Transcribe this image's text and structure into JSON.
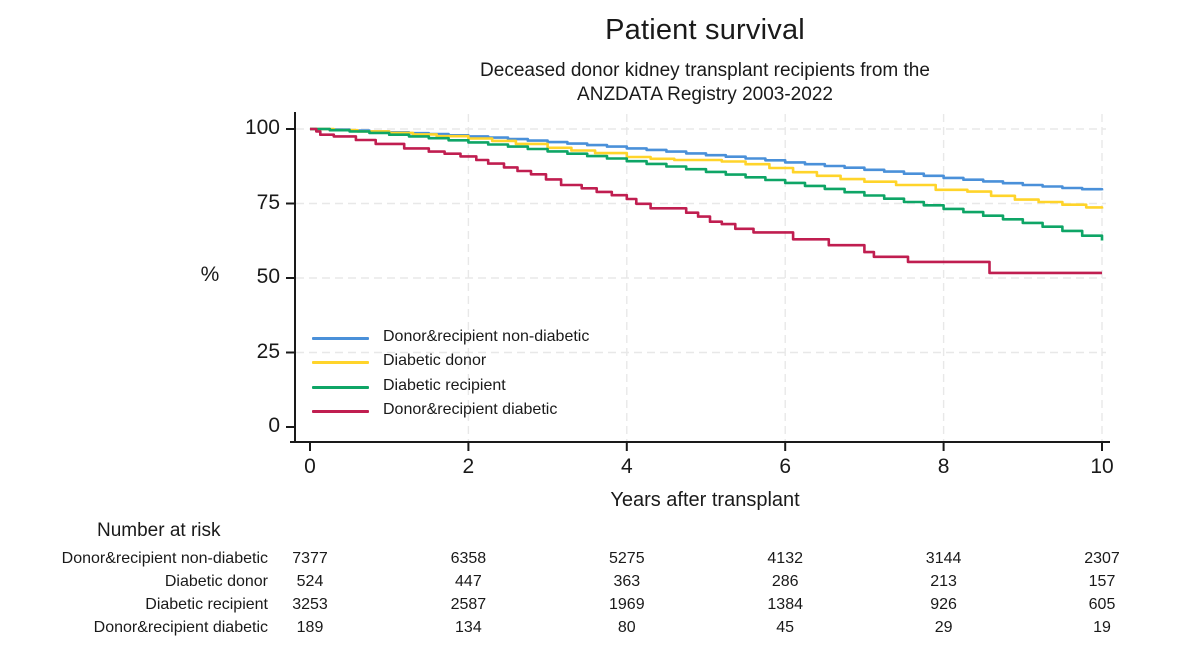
{
  "chart_data": {
    "type": "line",
    "subtype": "kaplan-meier-step",
    "title": "Patient survival",
    "subtitle": [
      "Deceased donor kidney transplant recipients from the",
      "ANZDATA Registry 2003-2022"
    ],
    "xlabel": "Years after transplant",
    "ylabel": "%",
    "xlim": [
      0,
      10
    ],
    "ylim": [
      0,
      100
    ],
    "x_ticks": [
      0,
      2,
      4,
      6,
      8,
      10
    ],
    "y_ticks": [
      0,
      25,
      50,
      75,
      100
    ],
    "grid": "light-dashed",
    "legend_position": "inside-lower-left",
    "colors": {
      "axis": "#1a1a1a",
      "grid": "#e8e8e8"
    },
    "series": [
      {
        "name": "Donor&recipient non-diabetic",
        "color": "#4a90d9",
        "points": [
          [
            0,
            100
          ],
          [
            0.25,
            99.8
          ],
          [
            0.5,
            99.5
          ],
          [
            0.75,
            99.2
          ],
          [
            1,
            98.9
          ],
          [
            1.25,
            98.6
          ],
          [
            1.5,
            98.3
          ],
          [
            1.75,
            97.9
          ],
          [
            2,
            97.5
          ],
          [
            2.25,
            97.1
          ],
          [
            2.5,
            96.6
          ],
          [
            2.75,
            96.1
          ],
          [
            3,
            95.6
          ],
          [
            3.25,
            95.1
          ],
          [
            3.5,
            94.6
          ],
          [
            3.75,
            94.1
          ],
          [
            4,
            93.5
          ],
          [
            4.25,
            93.0
          ],
          [
            4.5,
            92.4
          ],
          [
            4.75,
            91.8
          ],
          [
            5,
            91.2
          ],
          [
            5.25,
            90.7
          ],
          [
            5.5,
            90.1
          ],
          [
            5.75,
            89.5
          ],
          [
            6,
            88.8
          ],
          [
            6.25,
            88.2
          ],
          [
            6.5,
            87.6
          ],
          [
            6.75,
            87.0
          ],
          [
            7,
            86.3
          ],
          [
            7.25,
            85.7
          ],
          [
            7.5,
            85.0
          ],
          [
            7.75,
            84.3
          ],
          [
            8,
            83.6
          ],
          [
            8.25,
            83.0
          ],
          [
            8.5,
            82.4
          ],
          [
            8.75,
            81.8
          ],
          [
            9,
            81.2
          ],
          [
            9.25,
            80.7
          ],
          [
            9.5,
            80.2
          ],
          [
            9.75,
            79.8
          ],
          [
            10,
            79.4
          ]
        ]
      },
      {
        "name": "Diabetic donor",
        "color": "#ffd42a",
        "points": [
          [
            0,
            100
          ],
          [
            0.3,
            99.6
          ],
          [
            0.6,
            99.2
          ],
          [
            1,
            98.7
          ],
          [
            1.3,
            98.2
          ],
          [
            1.6,
            97.6
          ],
          [
            2,
            96.8
          ],
          [
            2.3,
            96.0
          ],
          [
            2.6,
            95.0
          ],
          [
            3,
            93.7
          ],
          [
            3.3,
            92.8
          ],
          [
            3.6,
            91.9
          ],
          [
            4,
            90.6
          ],
          [
            4.3,
            90.0
          ],
          [
            4.6,
            89.6
          ],
          [
            5.2,
            89.1
          ],
          [
            5.5,
            88.2
          ],
          [
            5.8,
            86.9
          ],
          [
            6.1,
            85.5
          ],
          [
            6.4,
            84.3
          ],
          [
            6.7,
            83.2
          ],
          [
            7,
            82.3
          ],
          [
            7.4,
            81.2
          ],
          [
            7.9,
            79.6
          ],
          [
            8.3,
            79.0
          ],
          [
            8.6,
            77.6
          ],
          [
            8.9,
            76.3
          ],
          [
            9.2,
            75.5
          ],
          [
            9.5,
            74.6
          ],
          [
            9.8,
            73.7
          ],
          [
            10,
            73.3
          ]
        ]
      },
      {
        "name": "Diabetic recipient",
        "color": "#0ea566",
        "points": [
          [
            0,
            100
          ],
          [
            0.25,
            99.6
          ],
          [
            0.5,
            99.2
          ],
          [
            0.75,
            98.7
          ],
          [
            1,
            98.1
          ],
          [
            1.25,
            97.5
          ],
          [
            1.5,
            96.9
          ],
          [
            1.75,
            96.2
          ],
          [
            2,
            95.5
          ],
          [
            2.25,
            94.8
          ],
          [
            2.5,
            94.1
          ],
          [
            2.75,
            93.3
          ],
          [
            3,
            92.5
          ],
          [
            3.25,
            91.7
          ],
          [
            3.5,
            90.9
          ],
          [
            3.75,
            90.1
          ],
          [
            4,
            89.2
          ],
          [
            4.25,
            88.3
          ],
          [
            4.5,
            87.4
          ],
          [
            4.75,
            86.5
          ],
          [
            5,
            85.6
          ],
          [
            5.25,
            84.7
          ],
          [
            5.5,
            83.8
          ],
          [
            5.75,
            82.9
          ],
          [
            6,
            81.9
          ],
          [
            6.25,
            80.9
          ],
          [
            6.5,
            79.9
          ],
          [
            6.75,
            78.8
          ],
          [
            7,
            77.7
          ],
          [
            7.25,
            76.6
          ],
          [
            7.5,
            75.5
          ],
          [
            7.75,
            74.4
          ],
          [
            8,
            73.2
          ],
          [
            8.25,
            72.1
          ],
          [
            8.5,
            70.9
          ],
          [
            8.75,
            69.7
          ],
          [
            9,
            68.5
          ],
          [
            9.25,
            67.2
          ],
          [
            9.5,
            65.8
          ],
          [
            9.75,
            64.2
          ],
          [
            10,
            62.6
          ]
        ]
      },
      {
        "name": "Donor&recipient diabetic",
        "color": "#c01e50",
        "points": [
          [
            0,
            100
          ],
          [
            0.08,
            99.2
          ],
          [
            0.13,
            98.1
          ],
          [
            0.3,
            97.5
          ],
          [
            0.58,
            96.3
          ],
          [
            0.83,
            95.0
          ],
          [
            1.19,
            93.5
          ],
          [
            1.5,
            92.4
          ],
          [
            1.7,
            91.7
          ],
          [
            1.9,
            90.8
          ],
          [
            2.1,
            89.6
          ],
          [
            2.25,
            88.4
          ],
          [
            2.45,
            87.1
          ],
          [
            2.62,
            85.9
          ],
          [
            2.79,
            84.8
          ],
          [
            2.98,
            83.1
          ],
          [
            3.17,
            81.2
          ],
          [
            3.43,
            80.1
          ],
          [
            3.62,
            78.9
          ],
          [
            3.81,
            77.8
          ],
          [
            4.0,
            76.5
          ],
          [
            4.12,
            74.9
          ],
          [
            4.3,
            73.4
          ],
          [
            4.75,
            71.9
          ],
          [
            4.9,
            70.6
          ],
          [
            5.05,
            68.9
          ],
          [
            5.2,
            68.1
          ],
          [
            5.37,
            66.5
          ],
          [
            5.6,
            65.3
          ],
          [
            6.1,
            63.0
          ],
          [
            6.55,
            61.0
          ],
          [
            7.0,
            58.7
          ],
          [
            7.12,
            57.1
          ],
          [
            7.55,
            55.4
          ],
          [
            8.58,
            51.7
          ],
          [
            10,
            51.7
          ]
        ]
      }
    ]
  },
  "risk_table": {
    "header": "Number at risk",
    "time_points": [
      0,
      2,
      4,
      6,
      8,
      10
    ],
    "rows": [
      {
        "label": "Donor&recipient non-diabetic",
        "counts": [
          "7377",
          "6358",
          "5275",
          "4132",
          "3144",
          "2307"
        ]
      },
      {
        "label": "Diabetic donor",
        "counts": [
          "524",
          "447",
          "363",
          "286",
          "213",
          "157"
        ]
      },
      {
        "label": "Diabetic recipient",
        "counts": [
          "3253",
          "2587",
          "1969",
          "1384",
          "926",
          "605"
        ]
      },
      {
        "label": "Donor&recipient diabetic",
        "counts": [
          "189",
          "134",
          "80",
          "45",
          "29",
          "19"
        ]
      }
    ]
  }
}
